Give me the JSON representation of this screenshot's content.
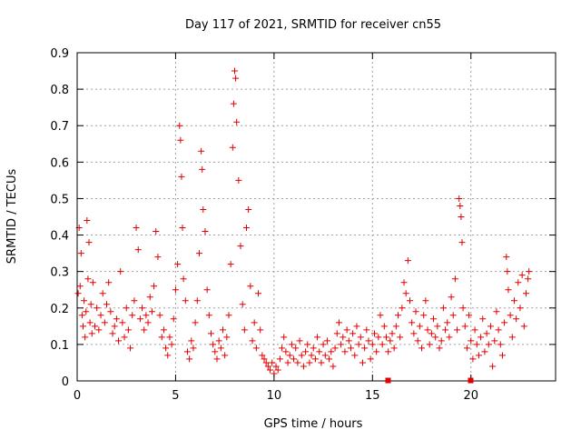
{
  "chart_data": {
    "type": "scatter",
    "title": "Day 117 of 2021, SRMTID for receiver cn55",
    "xlabel": "GPS time / hours",
    "ylabel": "SRMTID / TECUs",
    "xlim": [
      0,
      24.3
    ],
    "ylim": [
      0,
      0.9
    ],
    "x_ticks": [
      0,
      5,
      10,
      15,
      20
    ],
    "y_ticks": [
      0,
      0.1,
      0.2,
      0.3,
      0.4,
      0.5,
      0.6,
      0.7,
      0.8,
      0.9
    ],
    "x_tick_labels": [
      "0",
      "5",
      "10",
      "15",
      "20"
    ],
    "y_tick_labels": [
      "0",
      "0.1",
      "0.2",
      "0.3",
      "0.4",
      "0.5",
      "0.6",
      "0.7",
      "0.8",
      "0.9"
    ],
    "grid": true,
    "marker": "+",
    "color": "#e00000",
    "series": [
      {
        "name": "SRMTID",
        "points": [
          [
            0.05,
            0.24
          ],
          [
            0.1,
            0.42
          ],
          [
            0.15,
            0.26
          ],
          [
            0.2,
            0.35
          ],
          [
            0.25,
            0.18
          ],
          [
            0.3,
            0.15
          ],
          [
            0.35,
            0.22
          ],
          [
            0.4,
            0.12
          ],
          [
            0.45,
            0.19
          ],
          [
            0.5,
            0.44
          ],
          [
            0.55,
            0.28
          ],
          [
            0.6,
            0.38
          ],
          [
            0.65,
            0.16
          ],
          [
            0.7,
            0.21
          ],
          [
            0.75,
            0.13
          ],
          [
            0.8,
            0.27
          ],
          [
            0.9,
            0.15
          ],
          [
            1.0,
            0.2
          ],
          [
            1.1,
            0.14
          ],
          [
            1.2,
            0.18
          ],
          [
            1.3,
            0.24
          ],
          [
            1.4,
            0.16
          ],
          [
            1.5,
            0.21
          ],
          [
            1.6,
            0.27
          ],
          [
            1.7,
            0.19
          ],
          [
            1.8,
            0.13
          ],
          [
            1.9,
            0.15
          ],
          [
            2.0,
            0.17
          ],
          [
            2.1,
            0.11
          ],
          [
            2.2,
            0.3
          ],
          [
            2.3,
            0.16
          ],
          [
            2.4,
            0.12
          ],
          [
            2.5,
            0.2
          ],
          [
            2.6,
            0.14
          ],
          [
            2.7,
            0.09
          ],
          [
            2.8,
            0.18
          ],
          [
            2.9,
            0.22
          ],
          [
            3.0,
            0.42
          ],
          [
            3.1,
            0.36
          ],
          [
            3.2,
            0.17
          ],
          [
            3.3,
            0.2
          ],
          [
            3.4,
            0.14
          ],
          [
            3.5,
            0.18
          ],
          [
            3.6,
            0.16
          ],
          [
            3.7,
            0.23
          ],
          [
            3.8,
            0.19
          ],
          [
            3.9,
            0.26
          ],
          [
            4.0,
            0.41
          ],
          [
            4.1,
            0.34
          ],
          [
            4.2,
            0.18
          ],
          [
            4.3,
            0.12
          ],
          [
            4.4,
            0.14
          ],
          [
            4.5,
            0.09
          ],
          [
            4.6,
            0.07
          ],
          [
            4.7,
            0.12
          ],
          [
            4.8,
            0.1
          ],
          [
            4.9,
            0.17
          ],
          [
            5.0,
            0.25
          ],
          [
            5.1,
            0.32
          ],
          [
            5.2,
            0.7
          ],
          [
            5.25,
            0.66
          ],
          [
            5.3,
            0.56
          ],
          [
            5.35,
            0.42
          ],
          [
            5.4,
            0.28
          ],
          [
            5.5,
            0.22
          ],
          [
            5.6,
            0.08
          ],
          [
            5.7,
            0.06
          ],
          [
            5.8,
            0.11
          ],
          [
            5.9,
            0.09
          ],
          [
            6.0,
            0.16
          ],
          [
            6.1,
            0.22
          ],
          [
            6.2,
            0.35
          ],
          [
            6.3,
            0.63
          ],
          [
            6.35,
            0.58
          ],
          [
            6.4,
            0.47
          ],
          [
            6.5,
            0.41
          ],
          [
            6.6,
            0.25
          ],
          [
            6.7,
            0.18
          ],
          [
            6.8,
            0.13
          ],
          [
            6.9,
            0.1
          ],
          [
            7.0,
            0.08
          ],
          [
            7.1,
            0.06
          ],
          [
            7.2,
            0.11
          ],
          [
            7.3,
            0.09
          ],
          [
            7.4,
            0.14
          ],
          [
            7.5,
            0.07
          ],
          [
            7.6,
            0.12
          ],
          [
            7.7,
            0.18
          ],
          [
            7.8,
            0.32
          ],
          [
            7.9,
            0.64
          ],
          [
            7.95,
            0.76
          ],
          [
            8.0,
            0.85
          ],
          [
            8.05,
            0.83
          ],
          [
            8.1,
            0.71
          ],
          [
            8.2,
            0.55
          ],
          [
            8.3,
            0.37
          ],
          [
            8.4,
            0.21
          ],
          [
            8.5,
            0.14
          ],
          [
            8.6,
            0.42
          ],
          [
            8.7,
            0.47
          ],
          [
            8.8,
            0.26
          ],
          [
            8.9,
            0.11
          ],
          [
            9.0,
            0.16
          ],
          [
            9.1,
            0.09
          ],
          [
            9.2,
            0.24
          ],
          [
            9.3,
            0.14
          ],
          [
            9.4,
            0.07
          ],
          [
            9.5,
            0.06
          ],
          [
            9.6,
            0.05
          ],
          [
            9.7,
            0.04
          ],
          [
            9.8,
            0.03
          ],
          [
            9.9,
            0.05
          ],
          [
            10.0,
            0.02
          ],
          [
            10.1,
            0.04
          ],
          [
            10.2,
            0.03
          ],
          [
            10.3,
            0.06
          ],
          [
            10.4,
            0.09
          ],
          [
            10.5,
            0.12
          ],
          [
            10.6,
            0.08
          ],
          [
            10.7,
            0.05
          ],
          [
            10.8,
            0.07
          ],
          [
            10.9,
            0.1
          ],
          [
            11.0,
            0.06
          ],
          [
            11.1,
            0.09
          ],
          [
            11.2,
            0.05
          ],
          [
            11.3,
            0.11
          ],
          [
            11.4,
            0.07
          ],
          [
            11.5,
            0.04
          ],
          [
            11.6,
            0.08
          ],
          [
            11.7,
            0.1
          ],
          [
            11.8,
            0.05
          ],
          [
            11.9,
            0.07
          ],
          [
            12.0,
            0.09
          ],
          [
            12.1,
            0.06
          ],
          [
            12.2,
            0.12
          ],
          [
            12.3,
            0.08
          ],
          [
            12.4,
            0.05
          ],
          [
            12.5,
            0.1
          ],
          [
            12.6,
            0.07
          ],
          [
            12.7,
            0.11
          ],
          [
            12.8,
            0.06
          ],
          [
            12.9,
            0.08
          ],
          [
            13.0,
            0.04
          ],
          [
            13.1,
            0.09
          ],
          [
            13.2,
            0.13
          ],
          [
            13.3,
            0.16
          ],
          [
            13.4,
            0.1
          ],
          [
            13.5,
            0.12
          ],
          [
            13.6,
            0.08
          ],
          [
            13.7,
            0.14
          ],
          [
            13.8,
            0.11
          ],
          [
            13.9,
            0.09
          ],
          [
            14.0,
            0.13
          ],
          [
            14.1,
            0.07
          ],
          [
            14.2,
            0.15
          ],
          [
            14.3,
            0.1
          ],
          [
            14.4,
            0.12
          ],
          [
            14.5,
            0.05
          ],
          [
            14.6,
            0.09
          ],
          [
            14.7,
            0.14
          ],
          [
            14.8,
            0.11
          ],
          [
            14.9,
            0.06
          ],
          [
            15.0,
            0.1
          ],
          [
            15.1,
            0.13
          ],
          [
            15.2,
            0.08
          ],
          [
            15.3,
            0.12
          ],
          [
            15.4,
            0.18
          ],
          [
            15.5,
            0.1
          ],
          [
            15.6,
            0.15
          ],
          [
            15.7,
            0.12
          ],
          [
            15.8,
            0.08
          ],
          [
            15.9,
            0.11
          ],
          [
            16.0,
            0.13
          ],
          [
            16.1,
            0.09
          ],
          [
            16.2,
            0.15
          ],
          [
            16.3,
            0.18
          ],
          [
            16.4,
            0.12
          ],
          [
            16.5,
            0.2
          ],
          [
            16.6,
            0.27
          ],
          [
            16.7,
            0.24
          ],
          [
            16.8,
            0.33
          ],
          [
            16.9,
            0.22
          ],
          [
            17.0,
            0.16
          ],
          [
            17.1,
            0.13
          ],
          [
            17.2,
            0.19
          ],
          [
            17.3,
            0.11
          ],
          [
            17.4,
            0.15
          ],
          [
            17.5,
            0.09
          ],
          [
            17.6,
            0.18
          ],
          [
            17.7,
            0.22
          ],
          [
            17.8,
            0.14
          ],
          [
            17.9,
            0.1
          ],
          [
            18.0,
            0.13
          ],
          [
            18.1,
            0.17
          ],
          [
            18.2,
            0.12
          ],
          [
            18.3,
            0.15
          ],
          [
            18.4,
            0.09
          ],
          [
            18.5,
            0.11
          ],
          [
            18.6,
            0.2
          ],
          [
            18.7,
            0.14
          ],
          [
            18.8,
            0.16
          ],
          [
            18.9,
            0.12
          ],
          [
            19.0,
            0.23
          ],
          [
            19.1,
            0.18
          ],
          [
            19.2,
            0.28
          ],
          [
            19.3,
            0.14
          ],
          [
            19.4,
            0.5
          ],
          [
            19.45,
            0.48
          ],
          [
            19.5,
            0.45
          ],
          [
            19.55,
            0.38
          ],
          [
            19.6,
            0.2
          ],
          [
            19.7,
            0.15
          ],
          [
            19.8,
            0.09
          ],
          [
            19.9,
            0.18
          ],
          [
            20.0,
            0.11
          ],
          [
            20.1,
            0.06
          ],
          [
            20.2,
            0.14
          ],
          [
            20.3,
            0.1
          ],
          [
            20.4,
            0.07
          ],
          [
            20.5,
            0.12
          ],
          [
            20.6,
            0.17
          ],
          [
            20.7,
            0.08
          ],
          [
            20.8,
            0.13
          ],
          [
            20.9,
            0.1
          ],
          [
            21.0,
            0.15
          ],
          [
            21.1,
            0.04
          ],
          [
            21.2,
            0.11
          ],
          [
            21.3,
            0.19
          ],
          [
            21.4,
            0.14
          ],
          [
            21.5,
            0.1
          ],
          [
            21.6,
            0.07
          ],
          [
            21.7,
            0.16
          ],
          [
            21.8,
            0.34
          ],
          [
            21.85,
            0.3
          ],
          [
            21.9,
            0.25
          ],
          [
            22.0,
            0.18
          ],
          [
            22.1,
            0.12
          ],
          [
            22.2,
            0.22
          ],
          [
            22.3,
            0.17
          ],
          [
            22.4,
            0.27
          ],
          [
            22.5,
            0.2
          ],
          [
            22.6,
            0.29
          ],
          [
            22.7,
            0.15
          ],
          [
            22.8,
            0.24
          ],
          [
            22.9,
            0.28
          ],
          [
            22.95,
            0.3
          ]
        ]
      }
    ]
  }
}
